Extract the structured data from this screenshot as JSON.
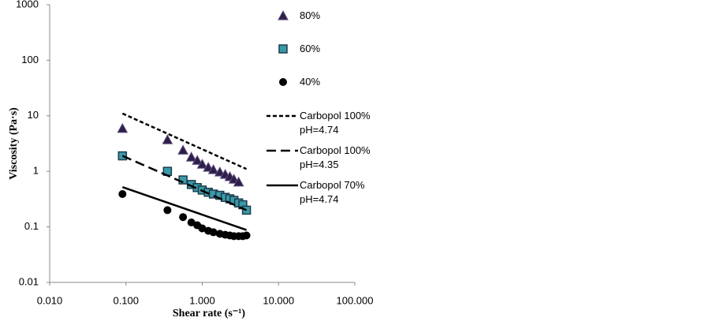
{
  "chart_data": {
    "type": "scatter",
    "x_label": "Shear rate (s⁻¹)",
    "y_label": "Viscosity (Pa·s)",
    "log_x": true,
    "log_y": true,
    "grid": false,
    "legend": "right",
    "xlim": [
      0.01,
      100
    ],
    "xticks": [
      {
        "value": 0.01,
        "label": "0.010"
      },
      {
        "value": 0.1,
        "label": "0.100"
      },
      {
        "value": 1,
        "label": "1.000"
      },
      {
        "value": 10,
        "label": "10.000"
      },
      {
        "value": 100,
        "label": "100.000"
      }
    ],
    "ylim": [
      0.01,
      1000
    ],
    "yticks": [
      0.01,
      0.1,
      1,
      10,
      100,
      1000
    ],
    "series": [
      {
        "name": "80%",
        "type": "scatter",
        "marker": "triangle",
        "color": "#2e1f4a",
        "x": [
          0.09,
          0.35,
          0.56,
          0.72,
          0.86,
          1.0,
          1.2,
          1.4,
          1.7,
          2.0,
          2.3,
          2.6,
          3.0
        ],
        "values": [
          5.9,
          3.7,
          2.4,
          1.8,
          1.57,
          1.34,
          1.18,
          1.07,
          0.97,
          0.88,
          0.8,
          0.72,
          0.64
        ]
      },
      {
        "name": "60%",
        "type": "scatter",
        "marker": "square",
        "color": "#3a9aa8",
        "x": [
          0.09,
          0.35,
          0.56,
          0.72,
          0.86,
          1.0,
          1.2,
          1.4,
          1.7,
          2.0,
          2.3,
          2.6,
          3.0,
          3.4,
          3.8
        ],
        "values": [
          1.9,
          1.0,
          0.7,
          0.58,
          0.51,
          0.46,
          0.42,
          0.39,
          0.37,
          0.34,
          0.32,
          0.3,
          0.27,
          0.25,
          0.2
        ]
      },
      {
        "name": "40%",
        "type": "scatter",
        "marker": "circle",
        "color": "#000000",
        "x": [
          0.09,
          0.35,
          0.56,
          0.72,
          0.86,
          1.0,
          1.2,
          1.4,
          1.7,
          2.0,
          2.3,
          2.6,
          3.0,
          3.4,
          3.8
        ],
        "values": [
          0.39,
          0.2,
          0.15,
          0.12,
          0.107,
          0.094,
          0.085,
          0.08,
          0.075,
          0.072,
          0.07,
          0.068,
          0.068,
          0.068,
          0.07
        ]
      },
      {
        "name": "Carbopol 100% pH=4.74",
        "type": "line",
        "dash": "dotted",
        "color": "#000000",
        "x": [
          0.09,
          3.8
        ],
        "values": [
          11,
          1.1
        ]
      },
      {
        "name": "Carbopol 100% pH=4.35",
        "type": "line",
        "dash": "dashed",
        "color": "#000000",
        "x": [
          0.09,
          3.8
        ],
        "values": [
          1.9,
          0.2
        ]
      },
      {
        "name": "Carbopol 70% pH=4.74",
        "type": "line",
        "dash": "solid",
        "color": "#000000",
        "x": [
          0.09,
          3.8
        ],
        "values": [
          0.52,
          0.088
        ]
      }
    ]
  }
}
